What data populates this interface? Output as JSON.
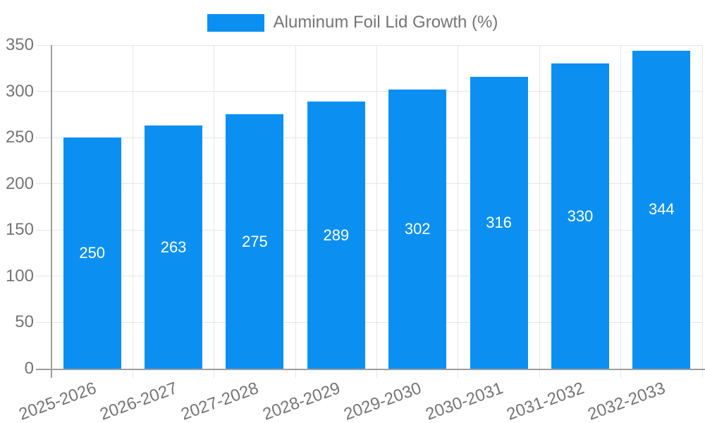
{
  "chart_data": {
    "type": "bar",
    "title": "",
    "legend": {
      "label": "Aluminum Foil Lid Growth (%)",
      "position": "top-center"
    },
    "categories": [
      "2025-2026",
      "2026-2027",
      "2027-2028",
      "2028-2029",
      "2029-2030",
      "2030-2031",
      "2031-2032",
      "2032-2033"
    ],
    "values": [
      250,
      263,
      275,
      289,
      302,
      316,
      330,
      344
    ],
    "xlabel": "",
    "ylabel": "",
    "ylim": [
      0,
      350
    ],
    "y_ticks": [
      0,
      50,
      100,
      150,
      200,
      250,
      300,
      350
    ],
    "grid": true,
    "x_label_rotation_deg": -20,
    "colors": {
      "bar": "#0b90f2",
      "axis_text": "#757575",
      "grid": "#e6e6e6",
      "axis_line": "#9e9e9e",
      "value_text": "#ffffff",
      "background": "#ffffff"
    }
  }
}
